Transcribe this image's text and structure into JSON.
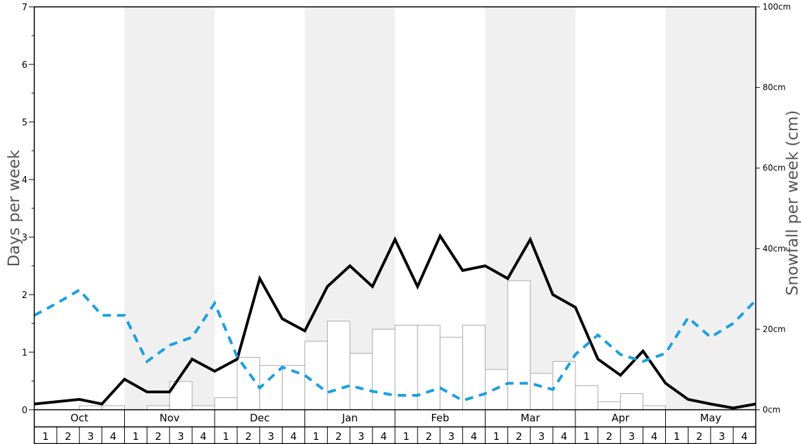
{
  "chart_data": {
    "type": "bar+line",
    "ylabel_left": "Days per week",
    "ylabel_right": "Snowfall per week (cm)",
    "left_axis": {
      "ylim": [
        0,
        7
      ],
      "ticks": [
        "0",
        "1",
        "2",
        "3",
        "4",
        "5",
        "6",
        "7"
      ]
    },
    "right_axis": {
      "ylim": [
        0,
        100
      ],
      "ticks": [
        "0cm",
        "20cm",
        "40cm",
        "60cm",
        "80cm",
        "100cm"
      ]
    },
    "months": [
      "Oct",
      "Nov",
      "Dec",
      "Jan",
      "Feb",
      "Mar",
      "Apr",
      "May"
    ],
    "weeks": [
      "1",
      "2",
      "3",
      "4"
    ],
    "shaded_months": [
      "Nov",
      "Jan",
      "Mar",
      "May"
    ],
    "series": [
      {
        "kind": "bar",
        "axis": "right",
        "color": "#ffffff",
        "edge": "#aaaaaa",
        "values": [
          0,
          0,
          1,
          1,
          0,
          1,
          7,
          1,
          3,
          13,
          11,
          11,
          17,
          22,
          14,
          20,
          21,
          21,
          18,
          21,
          10,
          32,
          9,
          12,
          6,
          2,
          4,
          1,
          0,
          0,
          0,
          0
        ]
      },
      {
        "kind": "line",
        "axis": "left",
        "color": "#000000",
        "style": "solid",
        "values": [
          0.1,
          0.14,
          0.18,
          0.1,
          0.53,
          0.31,
          0.31,
          0.88,
          0.67,
          0.88,
          2.28,
          1.58,
          1.37,
          2.14,
          2.5,
          2.14,
          2.96,
          2.14,
          3.02,
          2.42,
          2.5,
          2.28,
          2.96,
          2.0,
          1.78,
          0.88,
          0.6,
          1.02,
          0.46,
          0.18,
          0.1,
          0.03,
          0.1
        ]
      },
      {
        "kind": "line",
        "axis": "left",
        "color": "#1a9fe0",
        "style": "dashed",
        "values": [
          1.64,
          1.85,
          2.08,
          1.64,
          1.64,
          0.84,
          1.12,
          1.26,
          1.85,
          0.92,
          0.38,
          0.74,
          0.6,
          0.3,
          0.42,
          0.32,
          0.25,
          0.25,
          0.38,
          0.16,
          0.28,
          0.46,
          0.46,
          0.35,
          0.96,
          1.3,
          0.96,
          0.84,
          0.98,
          1.6,
          1.26,
          1.5,
          1.9
        ]
      }
    ]
  }
}
